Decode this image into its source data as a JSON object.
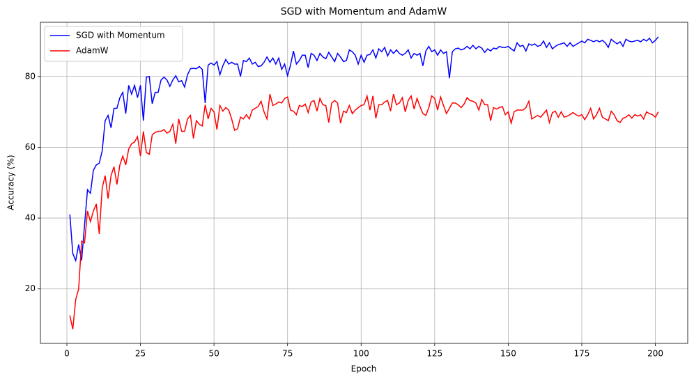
{
  "chart_data": {
    "type": "line",
    "title": "SGD with Momentum and AdamW",
    "x_label": "Epoch",
    "y_label": "Accuracy (%)",
    "x": [
      1,
      2,
      3,
      4,
      5,
      6,
      7,
      8,
      9,
      10,
      11,
      12,
      13,
      14,
      15,
      16,
      17,
      18,
      19,
      20,
      21,
      22,
      23,
      24,
      25,
      26,
      27,
      28,
      29,
      30,
      31,
      32,
      33,
      34,
      35,
      36,
      37,
      38,
      39,
      40,
      41,
      42,
      43,
      44,
      45,
      46,
      47,
      48,
      49,
      50,
      51,
      52,
      53,
      54,
      55,
      56,
      57,
      58,
      59,
      60,
      61,
      62,
      63,
      64,
      65,
      66,
      67,
      68,
      69,
      70,
      71,
      72,
      73,
      74,
      75,
      76,
      77,
      78,
      79,
      80,
      81,
      82,
      83,
      84,
      85,
      86,
      87,
      88,
      89,
      90,
      91,
      92,
      93,
      94,
      95,
      96,
      97,
      98,
      99,
      100,
      101,
      102,
      103,
      104,
      105,
      106,
      107,
      108,
      109,
      110,
      111,
      112,
      113,
      114,
      115,
      116,
      117,
      118,
      119,
      120,
      121,
      122,
      123,
      124,
      125,
      126,
      127,
      128,
      129,
      130,
      131,
      132,
      133,
      134,
      135,
      136,
      137,
      138,
      139,
      140,
      141,
      142,
      143,
      144,
      145,
      146,
      147,
      148,
      149,
      150,
      151,
      152,
      153,
      154,
      155,
      156,
      157,
      158,
      159,
      160,
      161,
      162,
      163,
      164,
      165,
      166,
      167,
      168,
      169,
      170,
      171,
      172,
      173,
      174,
      175,
      176,
      177,
      178,
      179,
      180,
      181,
      182,
      183,
      184,
      185,
      186,
      187,
      188,
      189,
      190,
      191,
      192,
      193,
      194,
      195,
      196,
      197,
      198,
      199,
      200,
      201
    ],
    "series": [
      {
        "name": "SGD with Momentum",
        "color": "#0000ff",
        "values": [
          41,
          30,
          28,
          32.5,
          28,
          38,
          48,
          47,
          53.5,
          55,
          55.5,
          59,
          67.5,
          69,
          65.5,
          71,
          71,
          74,
          75.5,
          69.5,
          77.5,
          75,
          77.5,
          74,
          77.5,
          67.5,
          79.8,
          80,
          72.3,
          75.5,
          75.5,
          79,
          79.8,
          79,
          77.2,
          79,
          80.2,
          78.5,
          78.8,
          77,
          80.5,
          82.2,
          82.3,
          82.2,
          82.8,
          82,
          72.5,
          83.2,
          83.8,
          83.2,
          84.2,
          80.5,
          83,
          84.8,
          83.5,
          84,
          83.5,
          83.5,
          80,
          84.5,
          84.2,
          85.2,
          83.5,
          84,
          82.8,
          83,
          84,
          85.5,
          84,
          85.2,
          83.5,
          85.2,
          82,
          83.5,
          80.2,
          83.2,
          87.2,
          83.5,
          84.5,
          86,
          86,
          82.5,
          86.5,
          86,
          84.5,
          86.5,
          85.5,
          85,
          86.8,
          85.5,
          84.2,
          86.5,
          85.5,
          84.2,
          84.5,
          87.5,
          87,
          86,
          83.5,
          86,
          84,
          86,
          86.2,
          87.5,
          85.2,
          87.8,
          87,
          88.2,
          85.8,
          87.5,
          86.5,
          87.5,
          86.5,
          86,
          86.5,
          87.5,
          85.2,
          86.5,
          86,
          86.5,
          83,
          87.2,
          88.5,
          87,
          87.5,
          86,
          87.5,
          86.5,
          87,
          79.5,
          87,
          87.8,
          88,
          87.5,
          87.8,
          88.5,
          87.8,
          88.8,
          87.8,
          88.5,
          88,
          86.8,
          87.8,
          87.2,
          88,
          87.8,
          88.5,
          88.2,
          88.2,
          88.5,
          87.8,
          87.2,
          89.5,
          88.5,
          88.8,
          87.2,
          89.2,
          88.8,
          89.2,
          88.5,
          88.8,
          90,
          88.2,
          89.5,
          87.8,
          88.5,
          89,
          89.2,
          89.5,
          88.5,
          89.5,
          88.5,
          89,
          89.5,
          90,
          89.5,
          90.5,
          90.2,
          89.8,
          90.2,
          89.8,
          90.2,
          89.5,
          88.2,
          90.5,
          89.8,
          89.2,
          89.8,
          88.5,
          90.5,
          90,
          89.8,
          90,
          90.2,
          89.8,
          90.5,
          90,
          90.8,
          89.5,
          90.2,
          91.2
        ]
      },
      {
        "name": "AdamW",
        "color": "#ff0000",
        "values": [
          12.5,
          8.6,
          17,
          20,
          33.5,
          33,
          42,
          39,
          42,
          44,
          35.5,
          48.5,
          52,
          45.5,
          52,
          54.5,
          49.5,
          55,
          57.5,
          55,
          59.5,
          61,
          61.5,
          63,
          57.5,
          64.5,
          58.5,
          58,
          63.5,
          64.2,
          64.5,
          64.5,
          65,
          64,
          64.5,
          66.5,
          61,
          68,
          64.5,
          64.5,
          68,
          69,
          62.5,
          67.5,
          66.5,
          66,
          72,
          68,
          71,
          70,
          65,
          71.8,
          70.2,
          71.2,
          70.5,
          68,
          64.8,
          65.2,
          68.5,
          68,
          69.2,
          68,
          70.5,
          71,
          71.5,
          73,
          70,
          68,
          75,
          71.8,
          72.2,
          72.8,
          72.5,
          73.8,
          74.2,
          70.5,
          70.2,
          69.2,
          71.8,
          71.5,
          72.2,
          69.8,
          72.8,
          73.2,
          70.2,
          73.8,
          72,
          71.8,
          67,
          72.5,
          73.2,
          72.5,
          66.8,
          70.2,
          69.8,
          71.8,
          69.5,
          70.5,
          71.2,
          71.8,
          72,
          74.5,
          70.5,
          74.5,
          68.2,
          72,
          72,
          72.8,
          73.2,
          70.2,
          75,
          72,
          72.5,
          74,
          70,
          73.2,
          74.5,
          70.8,
          73.8,
          71.5,
          69.5,
          69,
          71.2,
          74.5,
          73.8,
          70.5,
          74.2,
          71.8,
          69.5,
          71,
          72.5,
          72.5,
          72,
          71.2,
          72.2,
          74,
          73.2,
          73,
          72.5,
          70.5,
          73.5,
          72,
          72,
          67.5,
          71.2,
          70.8,
          71.2,
          71.5,
          69.2,
          70,
          66.8,
          70,
          70.5,
          70.5,
          70.5,
          71.2,
          73,
          68,
          68.5,
          69,
          68.5,
          69.5,
          70.5,
          67,
          69.8,
          70.2,
          68.5,
          70,
          68.5,
          68.8,
          69.2,
          69.8,
          69.2,
          68.8,
          69.2,
          67.8,
          69.2,
          71,
          68,
          69.2,
          71,
          68.5,
          68,
          67.5,
          70.2,
          69.2,
          67.5,
          67,
          68.2,
          68.5,
          69.2,
          68.2,
          69.2,
          68.8,
          69.2,
          68,
          70,
          69.5,
          69.2,
          68.5,
          70
        ]
      }
    ],
    "xlim": [
      -9,
      211
    ],
    "ylim": [
      4.6,
      95.3
    ],
    "xticks": [
      0,
      25,
      50,
      75,
      100,
      125,
      150,
      175,
      200
    ],
    "yticks": [
      20,
      40,
      60,
      80
    ],
    "grid": true,
    "legend": "upper left"
  }
}
